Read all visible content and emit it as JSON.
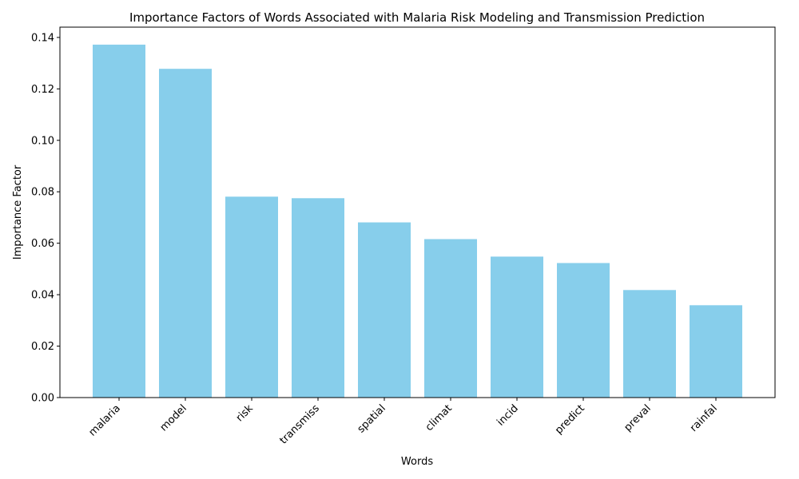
{
  "chart_data": {
    "type": "bar",
    "title": "Importance Factors of Words Associated with Malaria Risk Modeling and Transmission Prediction",
    "xlabel": "Words",
    "ylabel": "Importance Factor",
    "categories": [
      "malaria",
      "model",
      "risk",
      "transmiss",
      "spatial",
      "climat",
      "incid",
      "predict",
      "preval",
      "rainfal"
    ],
    "values": [
      0.1372,
      0.1278,
      0.0781,
      0.0775,
      0.0681,
      0.0616,
      0.0548,
      0.0523,
      0.0418,
      0.0359
    ],
    "ylim": [
      0,
      0.144
    ],
    "yticks": [
      0.0,
      0.02,
      0.04,
      0.06,
      0.08,
      0.1,
      0.12,
      0.14
    ],
    "ytick_labels": [
      "0.00",
      "0.02",
      "0.04",
      "0.06",
      "0.08",
      "0.10",
      "0.12",
      "0.14"
    ],
    "bar_color": "#87ceeb",
    "grid": false,
    "legend": false
  }
}
